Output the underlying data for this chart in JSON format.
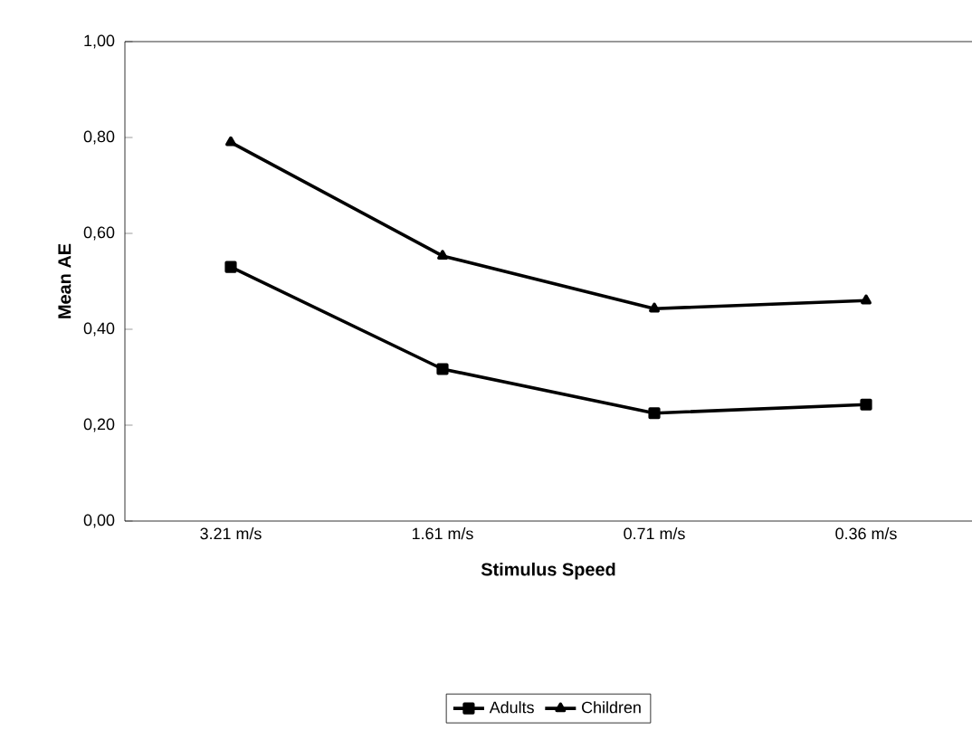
{
  "chart_data": {
    "type": "line",
    "xlabel": "Stimulus Speed",
    "ylabel": "Mean AE",
    "categories": [
      "3.21 m/s",
      "1.61 m/s",
      "0.71 m/s",
      "0.36 m/s"
    ],
    "series": [
      {
        "name": "Adults",
        "color": "#000000",
        "marker": "square",
        "values": [
          0.53,
          0.317,
          0.225,
          0.243
        ]
      },
      {
        "name": "Children",
        "color": "#000000",
        "marker": "triangle",
        "values": [
          0.79,
          0.553,
          0.443,
          0.46
        ]
      }
    ],
    "ylim": [
      0,
      1
    ],
    "yticks": [
      {
        "value": 0,
        "label": "0,00"
      },
      {
        "value": 0.2,
        "label": "0,20"
      },
      {
        "value": 0.4,
        "label": "0,40"
      },
      {
        "value": 0.6,
        "label": "0,60"
      },
      {
        "value": 0.8,
        "label": "0,80"
      },
      {
        "value": 1,
        "label": "1,00"
      }
    ],
    "legend": "bottom",
    "grid": false,
    "line_style": "solid"
  }
}
